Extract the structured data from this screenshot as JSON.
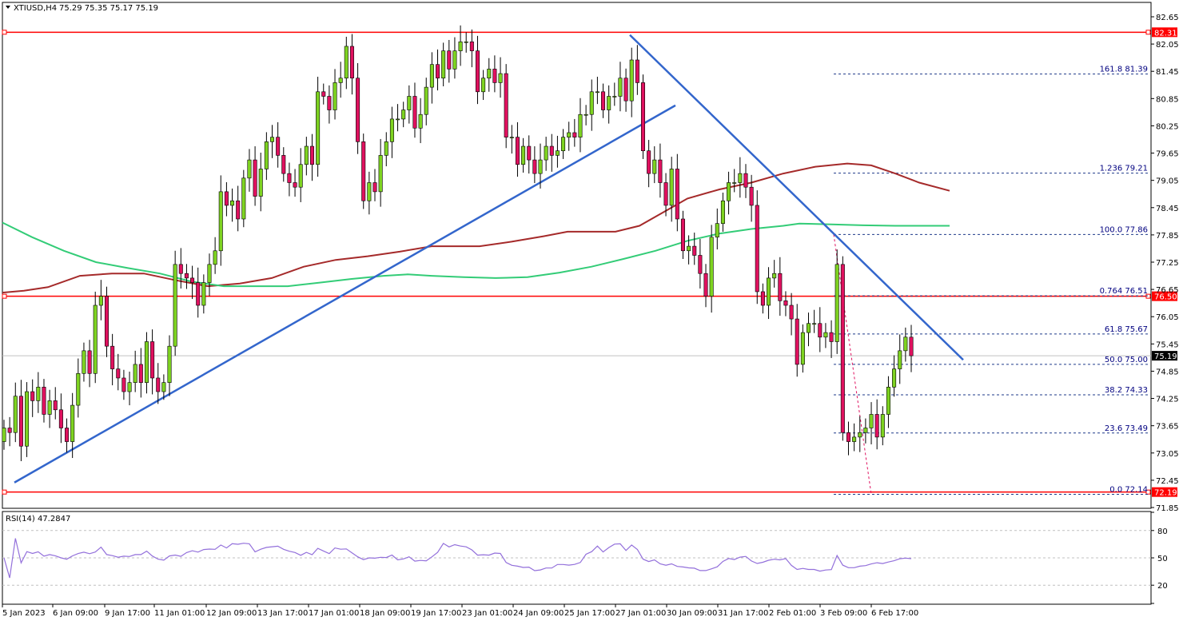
{
  "header": {
    "symbol": "XTIUSD,H4",
    "ohlc": "75.29 75.35 75.17 75.19"
  },
  "rsi_header": {
    "label": "RSI(14) 47.2847"
  },
  "colors": {
    "bull": "#7ED321",
    "bear": "#E0115F",
    "wick": "#000000",
    "hline": "#FF0000",
    "trend": "#3366CC",
    "ma_red": "#A52A2A",
    "ma_green": "#33CC77",
    "fib": "#1E3A8A",
    "rsi": "#9370DB",
    "price_tag": "#FF0000"
  },
  "chart_data": {
    "type": "candlestick",
    "symbol": "XTIUSD",
    "timeframe": "H4",
    "y_axis": {
      "min": 71.85,
      "max": 82.65,
      "ticks": [
        "82.65",
        "82.05",
        "81.45",
        "80.85",
        "80.25",
        "79.65",
        "79.05",
        "78.45",
        "77.85",
        "77.25",
        "76.65",
        "76.05",
        "75.45",
        "74.85",
        "74.25",
        "73.65",
        "73.05",
        "72.45",
        "71.85"
      ]
    },
    "x_labels": [
      "5 Jan 2023",
      "6 Jan 09:00",
      "9 Jan 17:00",
      "11 Jan 01:00",
      "12 Jan 09:00",
      "13 Jan 17:00",
      "17 Jan 01:00",
      "18 Jan 09:00",
      "19 Jan 17:00",
      "23 Jan 01:00",
      "24 Jan 09:00",
      "25 Jan 17:00",
      "27 Jan 01:00",
      "30 Jan 09:00",
      "31 Jan 17:00",
      "2 Feb 01:00",
      "3 Feb 09:00",
      "6 Feb 17:00"
    ],
    "horizontal_lines": [
      {
        "price": 82.31,
        "label": "82.31"
      },
      {
        "price": 76.5,
        "label": "76.50"
      },
      {
        "price": 72.19,
        "label": "72.19"
      }
    ],
    "current_price": {
      "price": 75.19,
      "label": "75.19"
    },
    "fibonacci": [
      {
        "price": 81.39,
        "label": "161.8 81.39"
      },
      {
        "price": 79.21,
        "label": "1.236 79.21"
      },
      {
        "price": 77.86,
        "label": "100.0 77.86"
      },
      {
        "price": 76.51,
        "label": "0.764 76.51"
      },
      {
        "price": 75.67,
        "label": "61.8 75.67"
      },
      {
        "price": 75.0,
        "label": "50.0 75.00"
      },
      {
        "price": 74.33,
        "label": "38.2 74.33"
      },
      {
        "price": 73.49,
        "label": "23.6 73.49"
      },
      {
        "price": 72.14,
        "label": "0.0 72.14"
      }
    ],
    "rsi": {
      "period": 14,
      "current": 47.2847,
      "levels": [
        "80",
        "50",
        "20"
      ],
      "ylim": [
        0,
        100
      ]
    }
  }
}
